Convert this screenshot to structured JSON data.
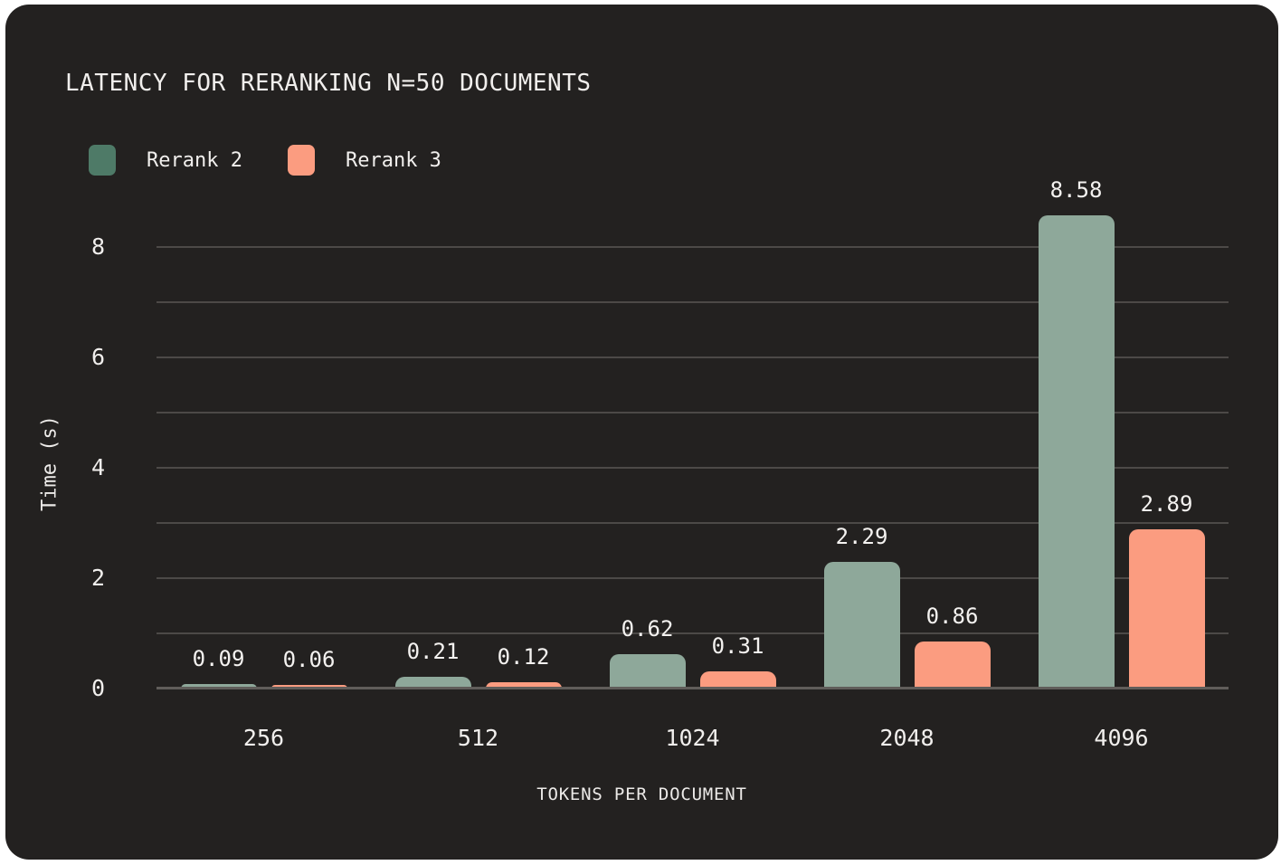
{
  "page_background": "#ffffff",
  "card": {
    "background": "#232120",
    "text_color": "#f1efed",
    "gridline_color": "#4c4947",
    "axis_line_color": "#605d5a"
  },
  "chart_data": {
    "type": "bar",
    "title": "LATENCY FOR RERANKING N=50 DOCUMENTS",
    "xlabel": "TOKENS PER DOCUMENT",
    "ylabel": "Time (s)",
    "categories": [
      "256",
      "512",
      "1024",
      "2048",
      "4096"
    ],
    "series": [
      {
        "name": "Rerank 2",
        "bar_color": "#8ea89a",
        "legend_color": "#4e7a67",
        "values": [
          0.09,
          0.21,
          0.62,
          2.29,
          8.58
        ],
        "labels": [
          "0.09",
          "0.21",
          "0.62",
          "2.29",
          "8.58"
        ]
      },
      {
        "name": "Rerank 3",
        "bar_color": "#fb9c80",
        "legend_color": "#fb9c80",
        "values": [
          0.06,
          0.12,
          0.31,
          0.86,
          2.89
        ],
        "labels": [
          "0.06",
          "0.12",
          "0.31",
          "0.86",
          "2.89"
        ]
      }
    ],
    "ylim": [
      0,
      9
    ],
    "yticks": [
      0,
      2,
      4,
      6,
      8
    ],
    "gridlines": [
      1,
      2,
      3,
      4,
      5,
      6,
      7,
      8
    ],
    "grid": true,
    "legend_position": "top-left"
  }
}
